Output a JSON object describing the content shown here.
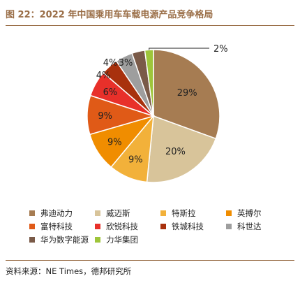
{
  "figure_title": "图 22：2022 年中国乘用车车载电源产品竞争格局",
  "source": "资料来源：NE Times，德邦研究所",
  "chart_data": {
    "type": "pie",
    "title": "",
    "unit": "%",
    "start_angle_deg": 0,
    "direction": "clockwise",
    "slices": [
      {
        "name": "弗迪动力",
        "value": 29,
        "label": "29%",
        "color": "#a67c52"
      },
      {
        "name": "威迈斯",
        "value": 20,
        "label": "20%",
        "color": "#d8c49a"
      },
      {
        "name": "特斯拉",
        "value": 9,
        "label": "9%",
        "color": "#f2b13a"
      },
      {
        "name": "英搏尔",
        "value": 9,
        "label": "9%",
        "color": "#f08d00"
      },
      {
        "name": "富特科技",
        "value": 9,
        "label": "9%",
        "color": "#e05a17"
      },
      {
        "name": "欣锐科技",
        "value": 6,
        "label": "6%",
        "color": "#e8302a"
      },
      {
        "name": "铁城科技",
        "value": 4,
        "label": "4%",
        "color": "#a8310d"
      },
      {
        "name": "科世达",
        "value": 4,
        "label": "4%",
        "color": "#9e9e9e"
      },
      {
        "name": "华为数字能源",
        "value": 3,
        "label": "3%",
        "color": "#7a5a48"
      },
      {
        "name": "力华集团",
        "value": 2,
        "label": "2%",
        "color": "#9ec53a"
      }
    ],
    "legend_position": "bottom"
  }
}
